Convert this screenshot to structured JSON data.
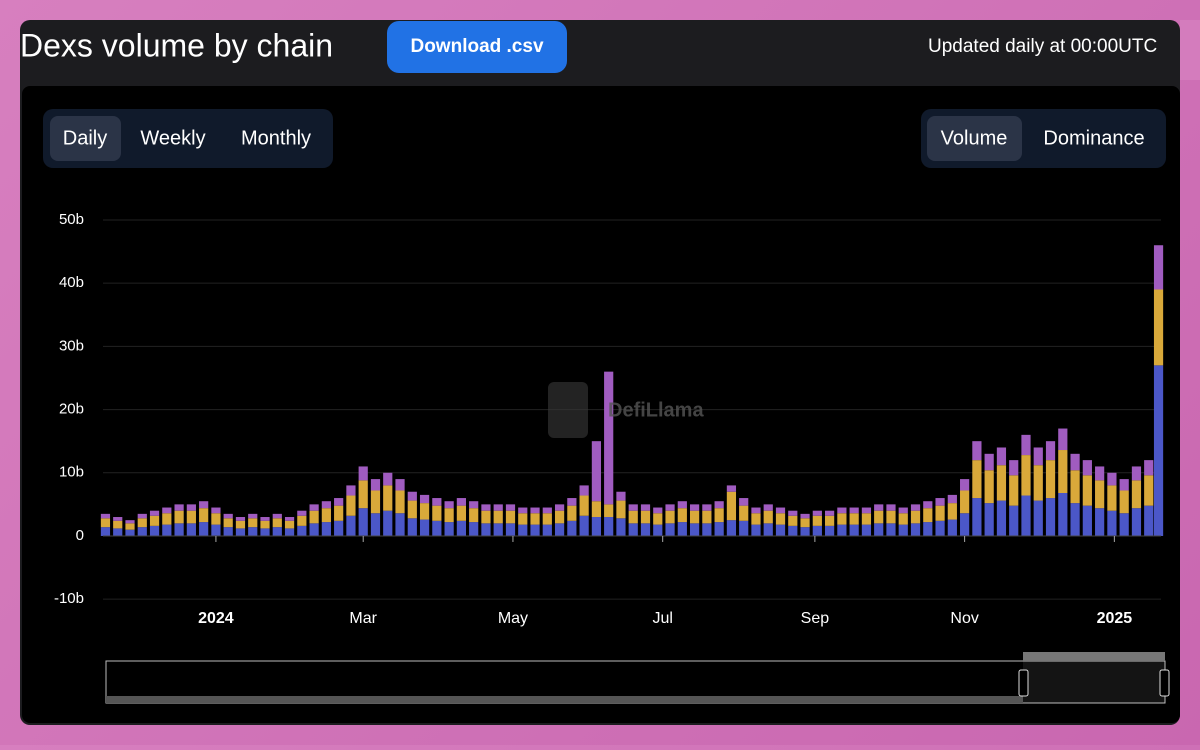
{
  "header": {
    "title": "Dexs volume by chain",
    "button": "Download .csv",
    "updated": "Updated daily at 00:00UTC"
  },
  "period_toggle": [
    "Daily",
    "Weekly",
    "Monthly"
  ],
  "mode_toggle": [
    "Volume",
    "Dominance"
  ],
  "watermark": "DefiLlama",
  "chart_data": {
    "type": "bar",
    "stacked": true,
    "grid": true,
    "x": [
      -45,
      -40,
      -35,
      -30,
      -25,
      -20,
      -15,
      -10,
      -5,
      0,
      5,
      10,
      15,
      20,
      25,
      30,
      35,
      40,
      45,
      50,
      55,
      60,
      65,
      70,
      75,
      80,
      85,
      90,
      95,
      100,
      105,
      110,
      115,
      120,
      125,
      130,
      135,
      140,
      145,
      150,
      155,
      160,
      165,
      170,
      175,
      180,
      185,
      190,
      195,
      200,
      205,
      210,
      215,
      220,
      225,
      230,
      235,
      240,
      245,
      250,
      255,
      260,
      265,
      270,
      275,
      280,
      285,
      290,
      295,
      300,
      305,
      310,
      315,
      320,
      325,
      330,
      335,
      340,
      345,
      350,
      355,
      360,
      365,
      370,
      375,
      380,
      384
    ],
    "xlim": [
      -46,
      385
    ],
    "xticks": [
      {
        "value": 0,
        "label": "2024"
      },
      {
        "value": 60,
        "label": "Mar"
      },
      {
        "value": 121,
        "label": "May"
      },
      {
        "value": 182,
        "label": "Jul"
      },
      {
        "value": 244,
        "label": "Sep"
      },
      {
        "value": 305,
        "label": "Nov"
      },
      {
        "value": 366,
        "label": "2025"
      }
    ],
    "ylim": [
      -11,
      53
    ],
    "yticks": [
      {
        "value": -10,
        "label": "-10b"
      },
      {
        "value": 0,
        "label": "0"
      },
      {
        "value": 10,
        "label": "10b"
      },
      {
        "value": 20,
        "label": "20b"
      },
      {
        "value": 30,
        "label": "30b"
      },
      {
        "value": 40,
        "label": "40b"
      },
      {
        "value": 50,
        "label": "50b"
      }
    ],
    "series": [
      {
        "color": "#4b57c8",
        "values": [
          1.4,
          1.2,
          1,
          1.4,
          1.6,
          1.8,
          2,
          2,
          2.2,
          1.8,
          1.4,
          1.2,
          1.4,
          1.2,
          1.4,
          1.2,
          1.6,
          2,
          2.2,
          2.4,
          3.2,
          4.4,
          3.6,
          4,
          3.6,
          2.8,
          2.6,
          2.4,
          2.2,
          2.4,
          2.2,
          2,
          2,
          2,
          1.8,
          1.8,
          1.8,
          2,
          2.4,
          3.2,
          3,
          3,
          2.8,
          2,
          2,
          1.8,
          2,
          2.2,
          2,
          2,
          2.2,
          2.5,
          2.4,
          1.8,
          2,
          1.8,
          1.6,
          1.4,
          1.6,
          1.6,
          1.8,
          1.8,
          1.8,
          2,
          2,
          1.8,
          2,
          2.2,
          2.4,
          2.6,
          3.6,
          6,
          5.2,
          5.6,
          4.8,
          6.4,
          5.6,
          6,
          6.8,
          5.2,
          4.8,
          4.4,
          4,
          3.6,
          4.4,
          4.8,
          27
        ]
      },
      {
        "color": "#d9a93a",
        "values": [
          1.4,
          1.2,
          1,
          1.4,
          1.6,
          1.8,
          2,
          2,
          2.2,
          1.8,
          1.4,
          1.2,
          1.4,
          1.2,
          1.4,
          1.2,
          1.6,
          2,
          2.2,
          2.4,
          3.2,
          4.4,
          3.6,
          4,
          3.6,
          2.8,
          2.6,
          2.4,
          2.2,
          2.4,
          2.2,
          2,
          2,
          2,
          1.8,
          1.8,
          1.8,
          2,
          2.4,
          3.2,
          2.5,
          2,
          2.8,
          2,
          2,
          1.8,
          2,
          2.2,
          2,
          2,
          2.2,
          4.5,
          2.4,
          1.8,
          2,
          1.8,
          1.6,
          1.4,
          1.6,
          1.6,
          1.8,
          1.8,
          1.8,
          2,
          2,
          1.8,
          2,
          2.2,
          2.4,
          2.6,
          3.6,
          6,
          5.2,
          5.6,
          4.8,
          6.4,
          5.6,
          6,
          6.8,
          5.2,
          4.8,
          4.4,
          4,
          3.6,
          4.4,
          4.8,
          12
        ]
      },
      {
        "color": "#a05cc0",
        "values": [
          0.7,
          0.6,
          0.5,
          0.7,
          0.8,
          0.9,
          1,
          1,
          1.1,
          0.9,
          0.7,
          0.6,
          0.7,
          0.6,
          0.7,
          0.6,
          0.8,
          1,
          1.1,
          1.2,
          1.6,
          2.2,
          1.8,
          2,
          1.8,
          1.4,
          1.3,
          1.2,
          1.1,
          1.2,
          1.1,
          1,
          1,
          1,
          0.9,
          0.9,
          0.9,
          1,
          1.2,
          1.6,
          9.5,
          21,
          1.4,
          1,
          1,
          0.9,
          1,
          1.1,
          1,
          1,
          1.1,
          1,
          1.2,
          0.9,
          1,
          0.9,
          0.8,
          0.7,
          0.8,
          0.8,
          0.9,
          0.9,
          0.9,
          1,
          1,
          0.9,
          1,
          1.1,
          1.2,
          1.3,
          1.8,
          3,
          2.6,
          2.8,
          2.4,
          3.2,
          2.8,
          3,
          3.4,
          2.6,
          2.4,
          2.2,
          2,
          1.8,
          2.2,
          2.4,
          7
        ]
      }
    ]
  }
}
